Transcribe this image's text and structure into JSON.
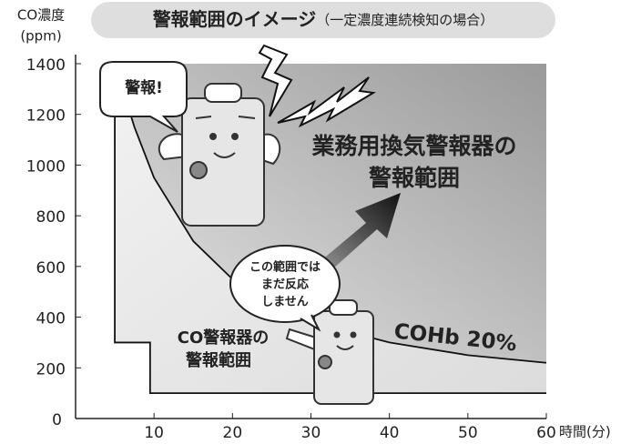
{
  "chart_data": {
    "type": "line",
    "title": "警報範囲のイメージ",
    "subtitle": "（一定濃度連続検知の場合）",
    "ylabel": "CO濃度",
    "yunit": "(ppm)",
    "xlabel": "時間(分)",
    "xlim": [
      0,
      60
    ],
    "ylim": [
      0,
      1400
    ],
    "xticks": [
      10,
      20,
      30,
      40,
      50,
      60
    ],
    "yticks": [
      0,
      200,
      400,
      600,
      800,
      1000,
      1200,
      1400
    ],
    "series": [
      {
        "name": "COHb 20%",
        "color": "#111111",
        "x": [
          5,
          7.5,
          10,
          15,
          20,
          25,
          30,
          40,
          50,
          60
        ],
        "values": [
          1400,
          1150,
          950,
          700,
          550,
          450,
          380,
          300,
          250,
          220
        ]
      },
      {
        "color": "#111111",
        "x": [
          5,
          5,
          9.5,
          9.5,
          60
        ],
        "values": [
          1400,
          300,
          300,
          100,
          100
        ]
      }
    ],
    "annotations": {
      "alarm_shout": "警報!",
      "commercial_range": [
        "業務用換気警報器の",
        "警報範囲"
      ],
      "no_reaction": [
        "この範囲では",
        "まだ反応",
        "しません"
      ],
      "co_range": [
        "CO警報器の",
        "警報範囲"
      ]
    }
  }
}
